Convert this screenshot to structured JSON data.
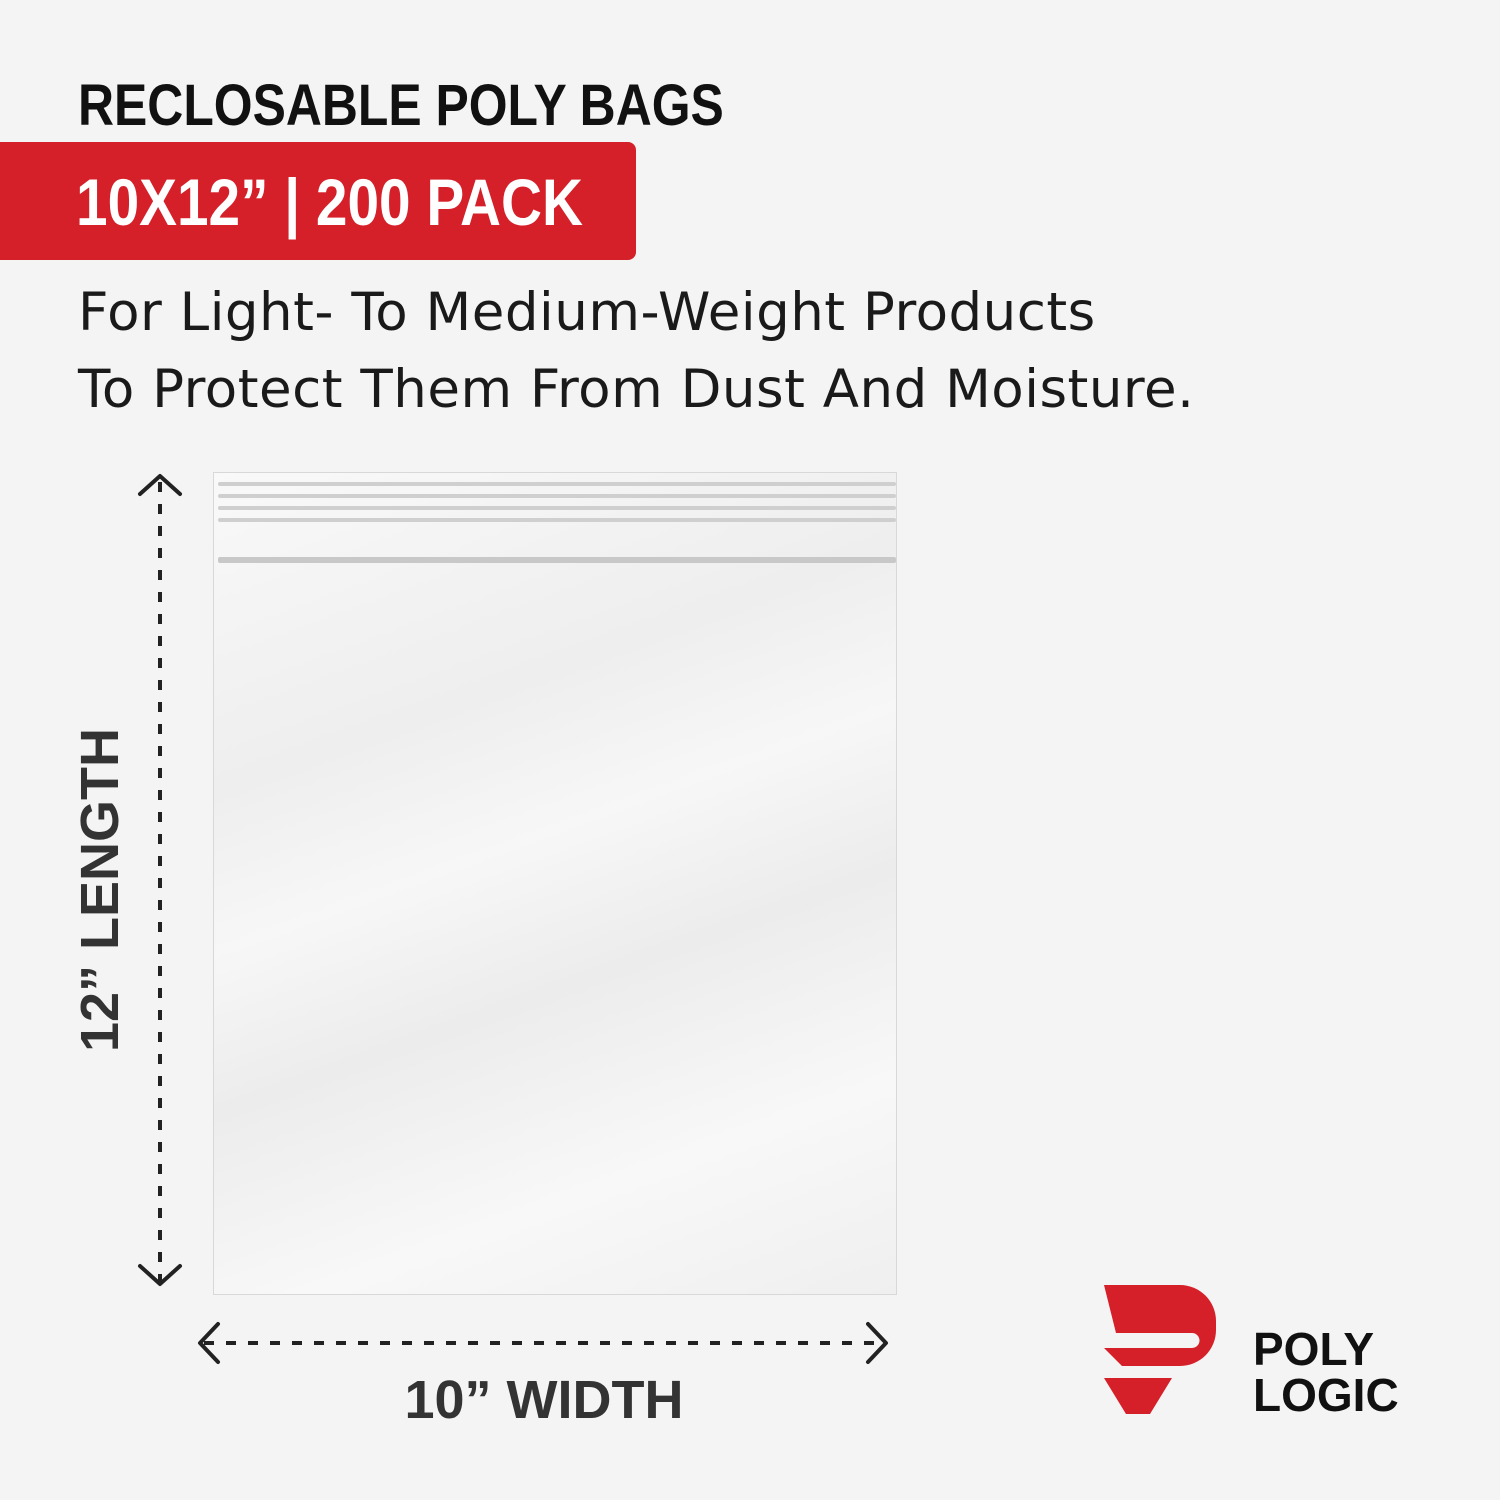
{
  "header": {
    "title": "RECLOSABLE POLY BAGS",
    "banner": "10X12”  |  200 PACK"
  },
  "description": {
    "line1": "For Light- To Medium-Weight Products",
    "line2": "To Protect Them From Dust And Moisture."
  },
  "dimensions": {
    "length_label": "12” LENGTH",
    "width_label": "10” WIDTH"
  },
  "brand": {
    "line1": "POLY",
    "line2": "LOGIC"
  },
  "colors": {
    "accent": "#d5202a",
    "background": "#f4f4f4",
    "text": "#111111"
  }
}
